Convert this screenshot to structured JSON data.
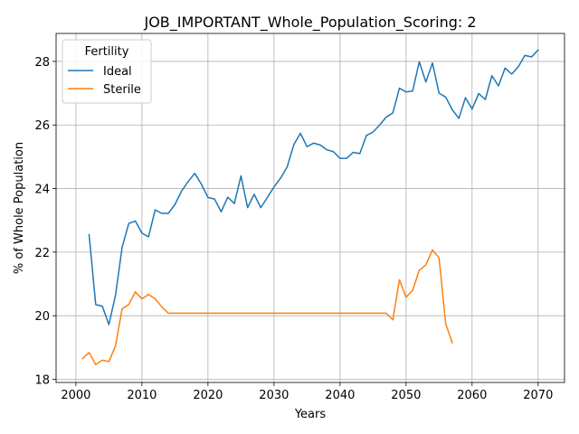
{
  "chart_data": {
    "type": "line",
    "title": "JOB_IMPORTANT_Whole_Population_Scoring: 2",
    "xlabel": "Years",
    "ylabel": "% of Whole Population",
    "xlim": [
      1997,
      2074
    ],
    "ylim": [
      17.9,
      28.88
    ],
    "xticks": [
      2000,
      2010,
      2020,
      2030,
      2040,
      2050,
      2060,
      2070
    ],
    "yticks": [
      18,
      20,
      22,
      24,
      26,
      28
    ],
    "grid": true,
    "legend": {
      "title": "Fertility",
      "placement": "top-left"
    },
    "series": [
      {
        "name": "Ideal",
        "color": "#1f77b4",
        "x": [
          2002,
          2003,
          2004,
          2005,
          2006,
          2007,
          2008,
          2009,
          2010,
          2011,
          2012,
          2013,
          2014,
          2015,
          2016,
          2017,
          2018,
          2019,
          2020,
          2021,
          2022,
          2023,
          2024,
          2025,
          2026,
          2027,
          2028,
          2029,
          2030,
          2031,
          2032,
          2033,
          2034,
          2035,
          2036,
          2037,
          2038,
          2039,
          2040,
          2041,
          2042,
          2043,
          2044,
          2045,
          2046,
          2047,
          2048,
          2049,
          2050,
          2051,
          2052,
          2053,
          2054,
          2055,
          2056,
          2057,
          2058,
          2059,
          2060,
          2061,
          2062,
          2063,
          2064,
          2065,
          2066,
          2067,
          2068,
          2069,
          2070
        ],
        "y": [
          22.55,
          20.35,
          20.3,
          19.72,
          20.65,
          22.15,
          22.9,
          22.98,
          22.6,
          22.48,
          23.33,
          23.22,
          23.22,
          23.5,
          23.92,
          24.22,
          24.48,
          24.14,
          23.72,
          23.67,
          23.27,
          23.73,
          23.53,
          24.4,
          23.4,
          23.82,
          23.4,
          23.72,
          24.05,
          24.33,
          24.68,
          25.38,
          25.74,
          25.32,
          25.43,
          25.37,
          25.22,
          25.16,
          24.95,
          24.95,
          25.14,
          25.1,
          25.67,
          25.78,
          26.0,
          26.25,
          26.38,
          27.16,
          27.04,
          27.07,
          27.99,
          27.35,
          27.95,
          27.0,
          26.88,
          26.48,
          26.21,
          26.86,
          26.5,
          26.99,
          26.8,
          27.55,
          27.23,
          27.79,
          27.6,
          27.83,
          28.19,
          28.14,
          28.36
        ]
      },
      {
        "name": "Sterile",
        "color": "#ff7f0e",
        "x": [
          2001,
          2002,
          2003,
          2004,
          2005,
          2006,
          2007,
          2008,
          2009,
          2010,
          2011,
          2012,
          2013,
          2014,
          2015,
          2016,
          2017,
          2018,
          2019,
          2020,
          2021,
          2022,
          2023,
          2024,
          2025,
          2026,
          2027,
          2028,
          2029,
          2030,
          2031,
          2032,
          2033,
          2034,
          2035,
          2036,
          2037,
          2038,
          2039,
          2040,
          2041,
          2042,
          2043,
          2044,
          2045,
          2046,
          2047,
          2048,
          2049,
          2050,
          2051,
          2052,
          2053,
          2054,
          2055,
          2056,
          2057
        ],
        "y": [
          18.65,
          18.84,
          18.46,
          18.6,
          18.56,
          19.05,
          20.22,
          20.35,
          20.75,
          20.53,
          20.67,
          20.53,
          20.28,
          20.08,
          20.08,
          20.08,
          20.08,
          20.08,
          20.08,
          20.08,
          20.08,
          20.08,
          20.08,
          20.08,
          20.08,
          20.08,
          20.08,
          20.08,
          20.08,
          20.08,
          20.08,
          20.08,
          20.08,
          20.08,
          20.08,
          20.08,
          20.08,
          20.08,
          20.08,
          20.08,
          20.08,
          20.08,
          20.08,
          20.08,
          20.08,
          20.08,
          20.08,
          19.87,
          21.13,
          20.58,
          20.8,
          21.43,
          21.6,
          22.07,
          21.82,
          19.75,
          19.15
        ]
      }
    ]
  }
}
